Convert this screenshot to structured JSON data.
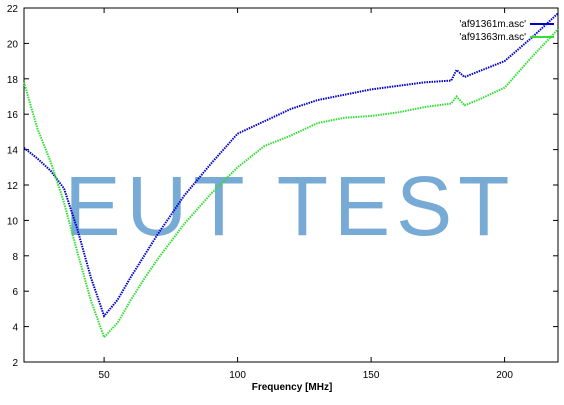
{
  "chart_data": {
    "type": "line",
    "x_label": "Frequency [MHz]",
    "watermark": "EUT TEST",
    "x": [
      20,
      25,
      30,
      35,
      40,
      45,
      50,
      55,
      60,
      65,
      70,
      75,
      80,
      90,
      100,
      110,
      120,
      130,
      140,
      150,
      160,
      170,
      180,
      182,
      185,
      190,
      200,
      210,
      220
    ],
    "series": [
      {
        "name": "'af91361m.asc'",
        "color": "#0000cc",
        "values": [
          14.1,
          13.5,
          12.8,
          11.8,
          9.5,
          6.8,
          4.6,
          5.5,
          6.8,
          8,
          9.2,
          10.3,
          11.4,
          13.2,
          14.9,
          15.6,
          16.3,
          16.8,
          17.1,
          17.4,
          17.6,
          17.8,
          17.9,
          18.5,
          18.1,
          18.4,
          19,
          20.3,
          21.7
        ]
      },
      {
        "name": "'af91363m.asc'",
        "color": "#33dd33",
        "values": [
          17.8,
          15.2,
          13.3,
          11,
          8.2,
          5.5,
          3.4,
          4.2,
          5.5,
          6.7,
          7.8,
          8.8,
          9.8,
          11.5,
          13,
          14.2,
          14.8,
          15.5,
          15.8,
          15.9,
          16.1,
          16.4,
          16.6,
          17,
          16.5,
          16.8,
          17.5,
          19.2,
          20.8
        ]
      }
    ],
    "xlim": [
      20,
      220
    ],
    "xticks": [
      50,
      100,
      150,
      200
    ],
    "ylim": [
      2,
      22
    ],
    "yticks": [
      2,
      4,
      6,
      8,
      10,
      12,
      14,
      16,
      18,
      20,
      22
    ],
    "legend": "top-right"
  }
}
